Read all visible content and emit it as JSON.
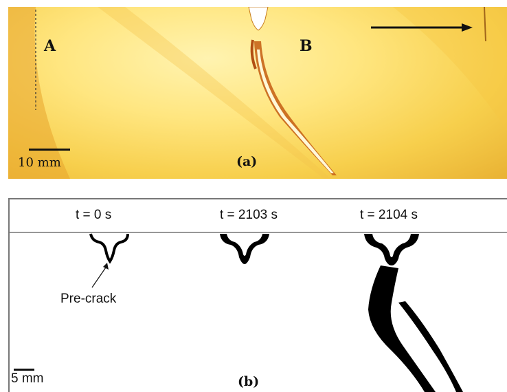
{
  "panel_a": {
    "label_a": "A",
    "label_b": "B",
    "scale_text": "10 mm",
    "caption": "(a)"
  },
  "panel_b": {
    "times": [
      "t = 0 s",
      "t = 2103 s",
      "t = 2104 s"
    ],
    "annotation": "Pre-crack",
    "scale_text": "5 mm",
    "caption": "(b)"
  }
}
